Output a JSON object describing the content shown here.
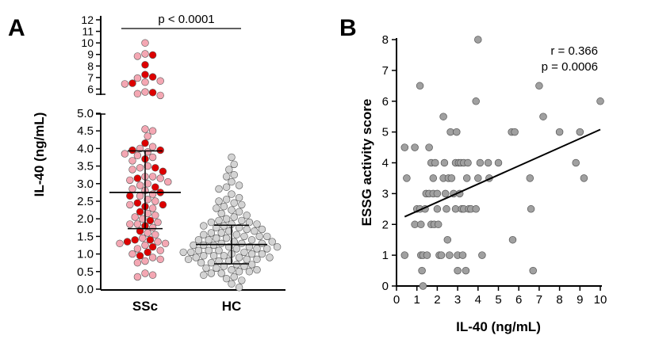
{
  "chart_data": [
    {
      "panel": "A",
      "type": "scatter",
      "subtype": "dot-plot",
      "ylabel": "IL-40 (ng/mL)",
      "categories": [
        "SSc",
        "HC"
      ],
      "y_segments": [
        {
          "range": [
            0,
            5
          ],
          "ticks": [
            "0.0",
            "0.5",
            "1.0",
            "1.5",
            "2.0",
            "2.5",
            "3.0",
            "3.5",
            "4.0",
            "4.5",
            "5.0"
          ]
        },
        {
          "range": [
            5,
            12
          ],
          "ticks": [
            "6",
            "7",
            "8",
            "9",
            "10",
            "11",
            "12"
          ]
        }
      ],
      "annotation": "p < 0.0001",
      "series": [
        {
          "category": "SSc",
          "color": "#f4a7b3",
          "highlight_color": "#dd0000",
          "mean": 2.75,
          "sd": [
            1.72,
            3.93
          ],
          "values": [
            10.0,
            9.05,
            8.95,
            8.85,
            8.1,
            7.25,
            7.05,
            6.95,
            6.7,
            6.6,
            6.5,
            6.45,
            5.75,
            5.7,
            5.6,
            5.45,
            4.55,
            4.5,
            4.35,
            4.15,
            4.05,
            4.0,
            3.95,
            3.95,
            3.9,
            3.85,
            3.8,
            3.75,
            3.7,
            3.65,
            3.5,
            3.45,
            3.45,
            3.4,
            3.35,
            3.2,
            3.2,
            3.15,
            3.15,
            3.1,
            3.05,
            3.0,
            2.95,
            2.9,
            2.85,
            2.8,
            2.75,
            2.7,
            2.65,
            2.65,
            2.55,
            2.5,
            2.45,
            2.4,
            2.4,
            2.35,
            2.3,
            2.2,
            2.15,
            2.1,
            2.05,
            2.0,
            1.95,
            1.9,
            1.85,
            1.85,
            1.8,
            1.75,
            1.65,
            1.6,
            1.55,
            1.45,
            1.4,
            1.4,
            1.35,
            1.35,
            1.3,
            1.3,
            1.25,
            1.2,
            1.15,
            1.1,
            1.05,
            1.0,
            0.95,
            0.9,
            0.85,
            0.8,
            0.75,
            0.45,
            0.4,
            0.35
          ],
          "highlighted": [
            false,
            false,
            true,
            false,
            true,
            true,
            true,
            false,
            false,
            false,
            true,
            false,
            false,
            true,
            false,
            false,
            false,
            false,
            false,
            true,
            false,
            false,
            true,
            true,
            false,
            false,
            false,
            false,
            true,
            false,
            false,
            false,
            true,
            false,
            true,
            false,
            false,
            true,
            false,
            false,
            false,
            false,
            false,
            true,
            false,
            false,
            true,
            false,
            false,
            true,
            false,
            false,
            true,
            false,
            true,
            true,
            false,
            true,
            false,
            false,
            false,
            false,
            true,
            false,
            false,
            false,
            true,
            false,
            true,
            false,
            false,
            false,
            true,
            true,
            false,
            true,
            false,
            false,
            false,
            true,
            false,
            false,
            true,
            false,
            true,
            false,
            false,
            false,
            false,
            false,
            false,
            false
          ]
        },
        {
          "category": "HC",
          "color": "#d3d3d3",
          "mean": 1.27,
          "sd": [
            0.72,
            1.82
          ],
          "values": [
            3.75,
            3.55,
            3.4,
            3.25,
            3.2,
            3.05,
            2.95,
            2.9,
            2.85,
            2.7,
            2.6,
            2.55,
            2.5,
            2.45,
            2.4,
            2.35,
            2.3,
            2.25,
            2.2,
            2.15,
            2.1,
            2.05,
            2.0,
            1.95,
            1.95,
            1.9,
            1.9,
            1.85,
            1.85,
            1.8,
            1.8,
            1.75,
            1.75,
            1.7,
            1.7,
            1.65,
            1.65,
            1.6,
            1.6,
            1.55,
            1.55,
            1.5,
            1.5,
            1.5,
            1.45,
            1.45,
            1.4,
            1.4,
            1.4,
            1.35,
            1.35,
            1.3,
            1.3,
            1.3,
            1.25,
            1.25,
            1.25,
            1.2,
            1.2,
            1.2,
            1.15,
            1.15,
            1.15,
            1.1,
            1.1,
            1.1,
            1.05,
            1.05,
            1.05,
            1.0,
            1.0,
            1.0,
            0.95,
            0.95,
            0.95,
            0.9,
            0.9,
            0.9,
            0.85,
            0.85,
            0.85,
            0.8,
            0.8,
            0.75,
            0.75,
            0.7,
            0.7,
            0.65,
            0.65,
            0.6,
            0.6,
            0.55,
            0.55,
            0.5,
            0.5,
            0.45,
            0.45,
            0.4,
            0.35,
            0.3,
            0.25,
            0.15,
            0.05
          ]
        }
      ]
    },
    {
      "panel": "B",
      "type": "scatter",
      "xlabel": "IL-40 (ng/mL)",
      "ylabel": "ESSG activity score",
      "xlim": [
        0,
        10
      ],
      "ylim": [
        0,
        8
      ],
      "xticks": [
        "0",
        "1",
        "2",
        "3",
        "4",
        "5",
        "6",
        "7",
        "8",
        "9",
        "10"
      ],
      "yticks": [
        "0",
        "1",
        "2",
        "3",
        "4",
        "5",
        "6",
        "7",
        "8"
      ],
      "annotations": [
        "r = 0.366",
        "p = 0.0006"
      ],
      "regression": {
        "x": [
          0.4,
          10.0
        ],
        "y": [
          2.25,
          5.08
        ]
      },
      "point_color": "#a0a0a0",
      "points": [
        [
          0.4,
          4.5
        ],
        [
          0.5,
          3.5
        ],
        [
          0.4,
          1.0
        ],
        [
          0.9,
          4.5
        ],
        [
          0.9,
          2.0
        ],
        [
          1.0,
          2.5
        ],
        [
          1.15,
          6.5
        ],
        [
          1.15,
          2.5
        ],
        [
          1.2,
          2.0
        ],
        [
          1.2,
          1.0
        ],
        [
          1.25,
          0.5
        ],
        [
          1.3,
          0.0
        ],
        [
          1.3,
          1.0
        ],
        [
          1.4,
          2.5
        ],
        [
          1.45,
          3.0
        ],
        [
          1.5,
          1.0
        ],
        [
          1.6,
          4.5
        ],
        [
          1.6,
          3.0
        ],
        [
          1.7,
          4.0
        ],
        [
          1.7,
          2.0
        ],
        [
          1.8,
          3.5
        ],
        [
          1.8,
          3.0
        ],
        [
          1.85,
          2.0
        ],
        [
          1.9,
          4.0
        ],
        [
          2.0,
          3.0
        ],
        [
          2.0,
          2.5
        ],
        [
          2.05,
          2.0
        ],
        [
          2.1,
          1.0
        ],
        [
          2.2,
          1.0
        ],
        [
          2.3,
          5.5
        ],
        [
          2.3,
          3.5
        ],
        [
          2.35,
          4.0
        ],
        [
          2.4,
          3.0
        ],
        [
          2.45,
          2.5
        ],
        [
          2.5,
          1.5
        ],
        [
          2.55,
          3.5
        ],
        [
          2.6,
          1.0
        ],
        [
          2.65,
          5.0
        ],
        [
          2.7,
          3.5
        ],
        [
          2.8,
          3.0
        ],
        [
          2.9,
          4.0
        ],
        [
          2.9,
          2.5
        ],
        [
          2.95,
          5.0
        ],
        [
          3.0,
          0.5
        ],
        [
          3.0,
          1.0
        ],
        [
          3.05,
          4.0
        ],
        [
          3.1,
          3.0
        ],
        [
          3.15,
          4.0
        ],
        [
          3.2,
          2.5
        ],
        [
          3.25,
          1.0
        ],
        [
          3.3,
          4.0
        ],
        [
          3.3,
          2.5
        ],
        [
          3.4,
          0.5
        ],
        [
          3.45,
          3.5
        ],
        [
          3.5,
          4.0
        ],
        [
          3.55,
          2.5
        ],
        [
          3.65,
          2.5
        ],
        [
          3.9,
          6.0
        ],
        [
          3.9,
          2.5
        ],
        [
          4.0,
          8.0
        ],
        [
          4.0,
          3.5
        ],
        [
          4.1,
          4.0
        ],
        [
          4.2,
          1.0
        ],
        [
          4.5,
          4.0
        ],
        [
          4.55,
          3.5
        ],
        [
          5.0,
          4.0
        ],
        [
          5.65,
          5.0
        ],
        [
          5.7,
          1.5
        ],
        [
          5.8,
          5.0
        ],
        [
          6.55,
          3.5
        ],
        [
          6.6,
          2.5
        ],
        [
          6.7,
          0.5
        ],
        [
          7.0,
          6.5
        ],
        [
          7.2,
          5.5
        ],
        [
          8.0,
          5.0
        ],
        [
          8.8,
          4.0
        ],
        [
          9.0,
          5.0
        ],
        [
          9.2,
          3.5
        ],
        [
          10.0,
          6.0
        ]
      ]
    }
  ]
}
